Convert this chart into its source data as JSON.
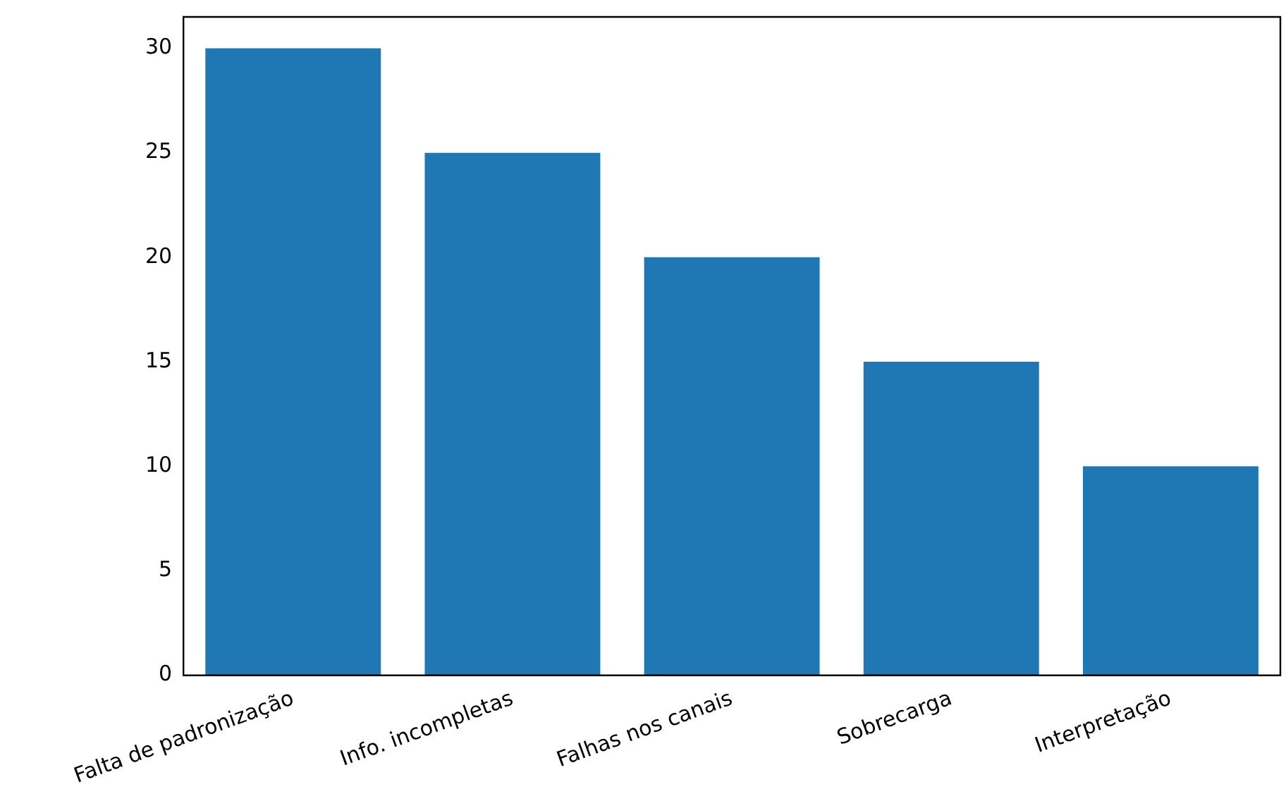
{
  "chart_data": {
    "type": "bar",
    "categories": [
      "Falta de padronização",
      "Info. incompletas",
      "Falhas nos canais",
      "Sobrecarga",
      "Interpretação"
    ],
    "values": [
      30,
      25,
      20,
      15,
      10
    ],
    "color": "#1f77b4",
    "ylim": [
      0,
      31.5
    ],
    "yticks": [
      0,
      5,
      10,
      15,
      20,
      25,
      30
    ],
    "grid": false,
    "legend": false
  }
}
